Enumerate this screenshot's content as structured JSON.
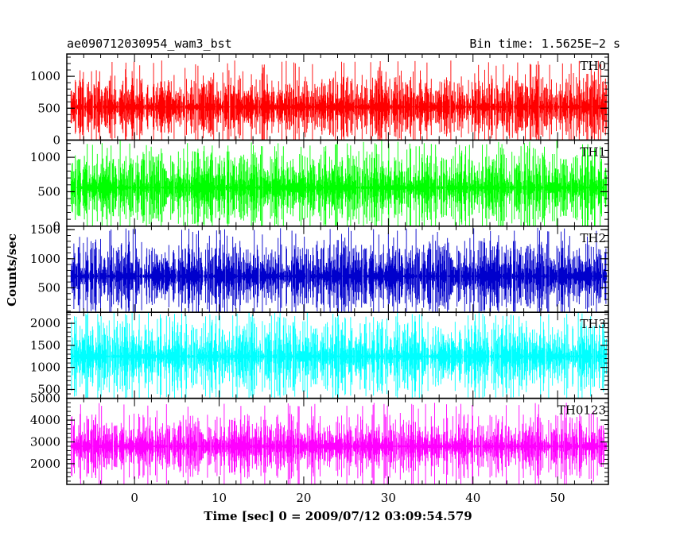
{
  "header": {
    "object_name": "ae090712030954_wam3_bst",
    "bin_time": "Bin time: 1.5625E−2 s"
  },
  "chart_data": {
    "type": "line",
    "xlabel": "Time [sec] 0 = 2009/07/12 03:09:54.579",
    "ylabel": "Counts/sec",
    "xlim": [
      -8,
      56
    ],
    "xticks_major": [
      0,
      10,
      20,
      30,
      40,
      50
    ],
    "panels": [
      {
        "name": "TH0",
        "color": "#ff0000",
        "ylim": [
          0,
          1350
        ],
        "yticks": [
          0,
          500,
          1000
        ],
        "mean": 520,
        "low": 80,
        "high": 1250,
        "spread": 250
      },
      {
        "name": "TH1",
        "color": "#00ff00",
        "ylim": [
          0,
          1250
        ],
        "yticks": [
          0,
          500,
          1000
        ],
        "mean": 560,
        "low": 70,
        "high": 1230,
        "spread": 260
      },
      {
        "name": "TH2",
        "color": "#0000cc",
        "ylim": [
          80,
          1560
        ],
        "yticks": [
          500,
          1000,
          1500
        ],
        "mean": 700,
        "low": 150,
        "high": 1550,
        "spread": 300
      },
      {
        "name": "TH3",
        "color": "#00ffff",
        "ylim": [
          300,
          2250
        ],
        "yticks": [
          500,
          1000,
          1500,
          2000
        ],
        "mean": 1250,
        "low": 450,
        "high": 2250,
        "spread": 400
      },
      {
        "name": "TH0123",
        "color": "#ff00ff",
        "ylim": [
          1050,
          5000
        ],
        "yticks": [
          2000,
          3000,
          4000,
          5000
        ],
        "mean": 2800,
        "low": 1300,
        "high": 4800,
        "spread": 600
      }
    ]
  }
}
